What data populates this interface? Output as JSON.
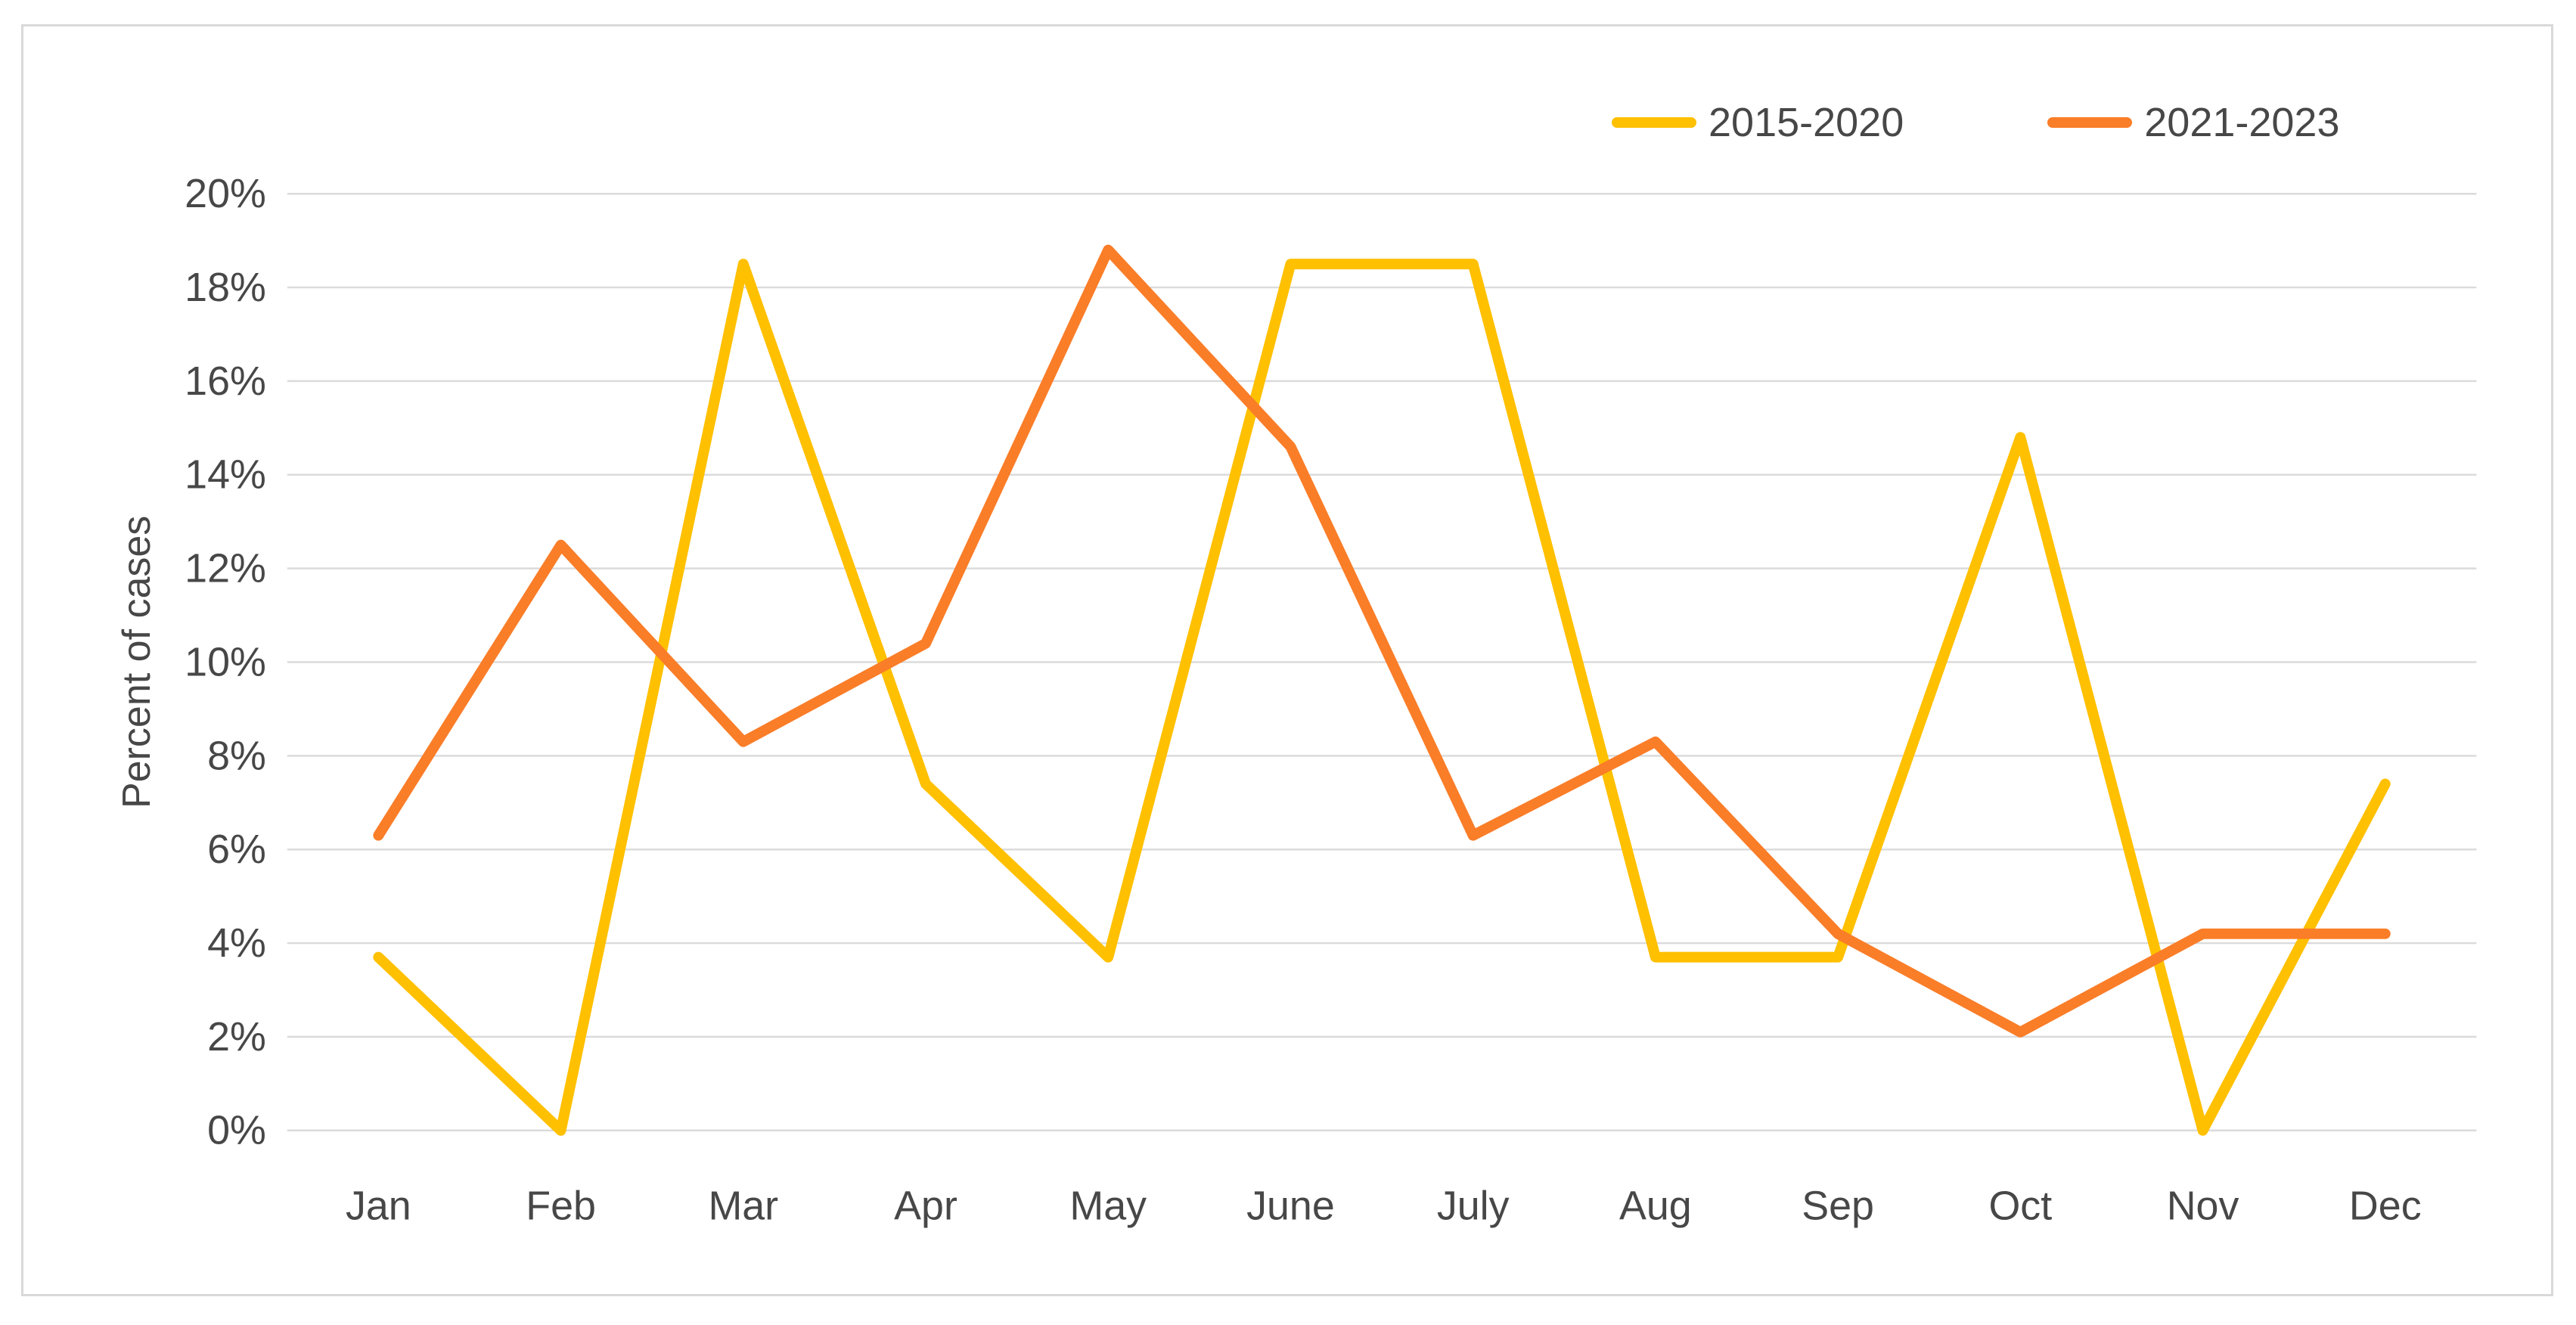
{
  "chart_data": {
    "type": "line",
    "title": "",
    "xlabel": "",
    "ylabel": "Percent of cases",
    "categories": [
      "Jan",
      "Feb",
      "Mar",
      "Apr",
      "May",
      "June",
      "July",
      "Aug",
      "Sep",
      "Oct",
      "Nov",
      "Dec"
    ],
    "series": [
      {
        "name": "2015-2020",
        "color": "#FFC000",
        "values": [
          3.7,
          0,
          18.5,
          7.4,
          3.7,
          18.5,
          18.5,
          3.7,
          3.7,
          14.8,
          0,
          7.4
        ]
      },
      {
        "name": "2021-2023",
        "color": "#FA7D28",
        "values": [
          6.3,
          12.5,
          8.3,
          10.4,
          18.8,
          14.6,
          6.3,
          8.3,
          4.2,
          2.1,
          4.2,
          4.2
        ]
      }
    ],
    "ylim": [
      0,
      20
    ],
    "y_step": 2,
    "y_tick_labels": [
      "0%",
      "2%",
      "4%",
      "6%",
      "8%",
      "10%",
      "12%",
      "14%",
      "16%",
      "18%",
      "20%"
    ],
    "grid": true,
    "legend_position": "top-right",
    "gridline_color": "#dbdbdb",
    "frame_border_color": "#d9d9d9",
    "text_color": "#474747"
  }
}
